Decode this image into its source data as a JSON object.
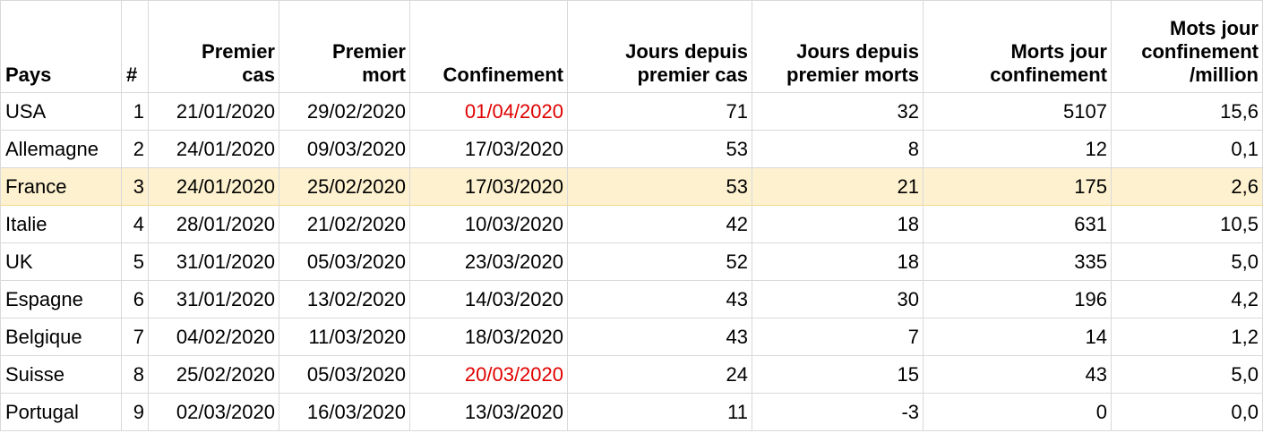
{
  "headers": {
    "pays": "Pays",
    "num": "#",
    "premier_cas": [
      "Premier",
      "cas"
    ],
    "premier_mort": [
      "Premier",
      "mort"
    ],
    "confinement": "Confinement",
    "jours_cas": [
      "Jours depuis",
      "premier cas"
    ],
    "jours_morts": [
      "Jours depuis",
      "premier morts"
    ],
    "morts_jour": [
      "Morts jour",
      "confinement"
    ],
    "mots_million": [
      "Mots jour",
      "confinement",
      "/million"
    ]
  },
  "rows": [
    {
      "pays": "USA",
      "num": "1",
      "premier_cas": "21/01/2020",
      "premier_mort": "29/02/2020",
      "confinement": "01/04/2020",
      "jours_cas": "71",
      "jours_morts": "32",
      "morts_jour": "5107",
      "per_million": "15,6"
    },
    {
      "pays": "Allemagne",
      "num": "2",
      "premier_cas": "24/01/2020",
      "premier_mort": "09/03/2020",
      "confinement": "17/03/2020",
      "jours_cas": "53",
      "jours_morts": "8",
      "morts_jour": "12",
      "per_million": "0,1"
    },
    {
      "pays": "France",
      "num": "3",
      "premier_cas": "24/01/2020",
      "premier_mort": "25/02/2020",
      "confinement": "17/03/2020",
      "jours_cas": "53",
      "jours_morts": "21",
      "morts_jour": "175",
      "per_million": "2,6"
    },
    {
      "pays": "Italie",
      "num": "4",
      "premier_cas": "28/01/2020",
      "premier_mort": "21/02/2020",
      "confinement": "10/03/2020",
      "jours_cas": "42",
      "jours_morts": "18",
      "morts_jour": "631",
      "per_million": "10,5"
    },
    {
      "pays": "UK",
      "num": "5",
      "premier_cas": "31/01/2020",
      "premier_mort": "05/03/2020",
      "confinement": "23/03/2020",
      "jours_cas": "52",
      "jours_morts": "18",
      "morts_jour": "335",
      "per_million": "5,0"
    },
    {
      "pays": "Espagne",
      "num": "6",
      "premier_cas": "31/01/2020",
      "premier_mort": "13/02/2020",
      "confinement": "14/03/2020",
      "jours_cas": "43",
      "jours_morts": "30",
      "morts_jour": "196",
      "per_million": "4,2"
    },
    {
      "pays": "Belgique",
      "num": "7",
      "premier_cas": "04/02/2020",
      "premier_mort": "11/03/2020",
      "confinement": "18/03/2020",
      "jours_cas": "43",
      "jours_morts": "7",
      "morts_jour": "14",
      "per_million": "1,2"
    },
    {
      "pays": "Suisse",
      "num": "8",
      "premier_cas": "25/02/2020",
      "premier_mort": "05/03/2020",
      "confinement": "20/03/2020",
      "jours_cas": "24",
      "jours_morts": "15",
      "morts_jour": "43",
      "per_million": "5,0"
    },
    {
      "pays": "Portugal",
      "num": "9",
      "premier_cas": "02/03/2020",
      "premier_mort": "16/03/2020",
      "confinement": "13/03/2020",
      "jours_cas": "11",
      "jours_morts": "-3",
      "morts_jour": "0",
      "per_million": "0,0"
    }
  ],
  "colors": {
    "highlight_row_bg": "#fdf1cf",
    "red_text": "#e00000",
    "grid": "#d9d9d9"
  }
}
